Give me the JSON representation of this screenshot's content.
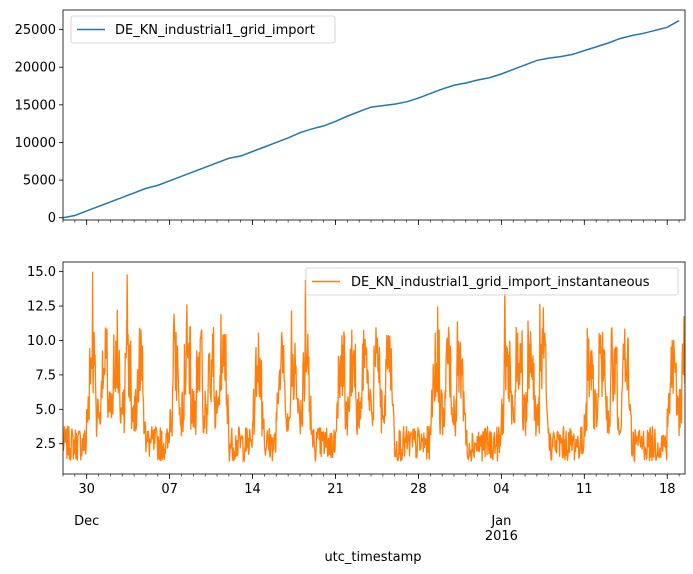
{
  "chart_data": [
    {
      "type": "line",
      "series": [
        {
          "name": "DE_KN_industrial1_grid_import",
          "color": "#1f77b4",
          "x": [
            "2015-11-28",
            "2015-11-29",
            "2015-11-30",
            "2015-12-01",
            "2015-12-02",
            "2015-12-03",
            "2015-12-04",
            "2015-12-05",
            "2015-12-06",
            "2015-12-07",
            "2015-12-08",
            "2015-12-09",
            "2015-12-10",
            "2015-12-11",
            "2015-12-12",
            "2015-12-13",
            "2015-12-14",
            "2015-12-15",
            "2015-12-16",
            "2015-12-17",
            "2015-12-18",
            "2015-12-19",
            "2015-12-20",
            "2015-12-21",
            "2015-12-22",
            "2015-12-23",
            "2015-12-24",
            "2015-12-25",
            "2015-12-26",
            "2015-12-27",
            "2015-12-28",
            "2015-12-29",
            "2015-12-30",
            "2015-12-31",
            "2016-01-01",
            "2016-01-02",
            "2016-01-03",
            "2016-01-04",
            "2016-01-05",
            "2016-01-06",
            "2016-01-07",
            "2016-01-08",
            "2016-01-09",
            "2016-01-10",
            "2016-01-11",
            "2016-01-12",
            "2016-01-13",
            "2016-01-14",
            "2016-01-15",
            "2016-01-16",
            "2016-01-17",
            "2016-01-18",
            "2016-01-19"
          ],
          "values": [
            0,
            300,
            900,
            1500,
            2100,
            2700,
            3300,
            3900,
            4300,
            4900,
            5500,
            6100,
            6700,
            7300,
            7900,
            8200,
            8800,
            9400,
            10000,
            10600,
            11300,
            11800,
            12200,
            12800,
            13500,
            14100,
            14700,
            14900,
            15100,
            15400,
            15900,
            16500,
            17100,
            17600,
            17900,
            18300,
            18600,
            19100,
            19700,
            20300,
            20900,
            21200,
            21400,
            21700,
            22200,
            22700,
            23200,
            23800,
            24200,
            24500,
            24900,
            25300,
            26200
          ]
        }
      ],
      "yticks": [
        "0",
        "5000",
        "10000",
        "15000",
        "20000",
        "25000"
      ],
      "ylim": [
        -300,
        27600
      ],
      "legend_placement": "upper left"
    },
    {
      "type": "line",
      "series": [
        {
          "name": "DE_KN_industrial1_grid_import_instantaneous",
          "color": "#ff7f0e",
          "x_start": "2015-11-28",
          "x_end": "2016-01-19"
        }
      ],
      "xticks": [
        {
          "major": "30",
          "minor": "Dec"
        },
        {
          "major": "07",
          "minor": ""
        },
        {
          "major": "14",
          "minor": ""
        },
        {
          "major": "21",
          "minor": ""
        },
        {
          "major": "28",
          "minor": ""
        },
        {
          "major": "04",
          "minor": "Jan\n2016"
        },
        {
          "major": "11",
          "minor": ""
        },
        {
          "major": "18",
          "minor": ""
        }
      ],
      "yticks": [
        "2.5",
        "5.0",
        "7.5",
        "10.0",
        "12.5",
        "15.0"
      ],
      "ylim": [
        0.3,
        15.7
      ],
      "xlabel": "utc_timestamp",
      "legend_placement": "upper right"
    }
  ]
}
